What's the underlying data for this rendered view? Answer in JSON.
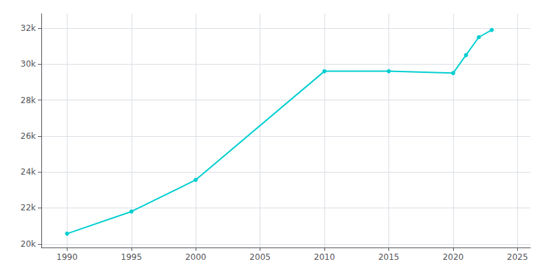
{
  "chart_data": {
    "type": "line",
    "x": [
      1990,
      1995,
      2000,
      2010,
      2015,
      2020,
      2021,
      2022,
      2023
    ],
    "values": [
      20570,
      21800,
      23562,
      29603,
      29603,
      29500,
      30500,
      31500,
      31900
    ],
    "color": "#00CED1",
    "marker": "circle",
    "xlim": [
      1988,
      2026
    ],
    "xticks": [
      1990,
      1995,
      2000,
      2005,
      2010,
      2015,
      2020,
      2025
    ],
    "ylim": [
      19800,
      32800
    ],
    "yticks": [
      {
        "value": 20000,
        "label": "20k"
      },
      {
        "value": 22000,
        "label": "22k"
      },
      {
        "value": 24000,
        "label": "24k"
      },
      {
        "value": 26000,
        "label": "26k"
      },
      {
        "value": 28000,
        "label": "28k"
      },
      {
        "value": 30000,
        "label": "30k"
      },
      {
        "value": 32000,
        "label": "32k"
      }
    ],
    "grid": true
  }
}
